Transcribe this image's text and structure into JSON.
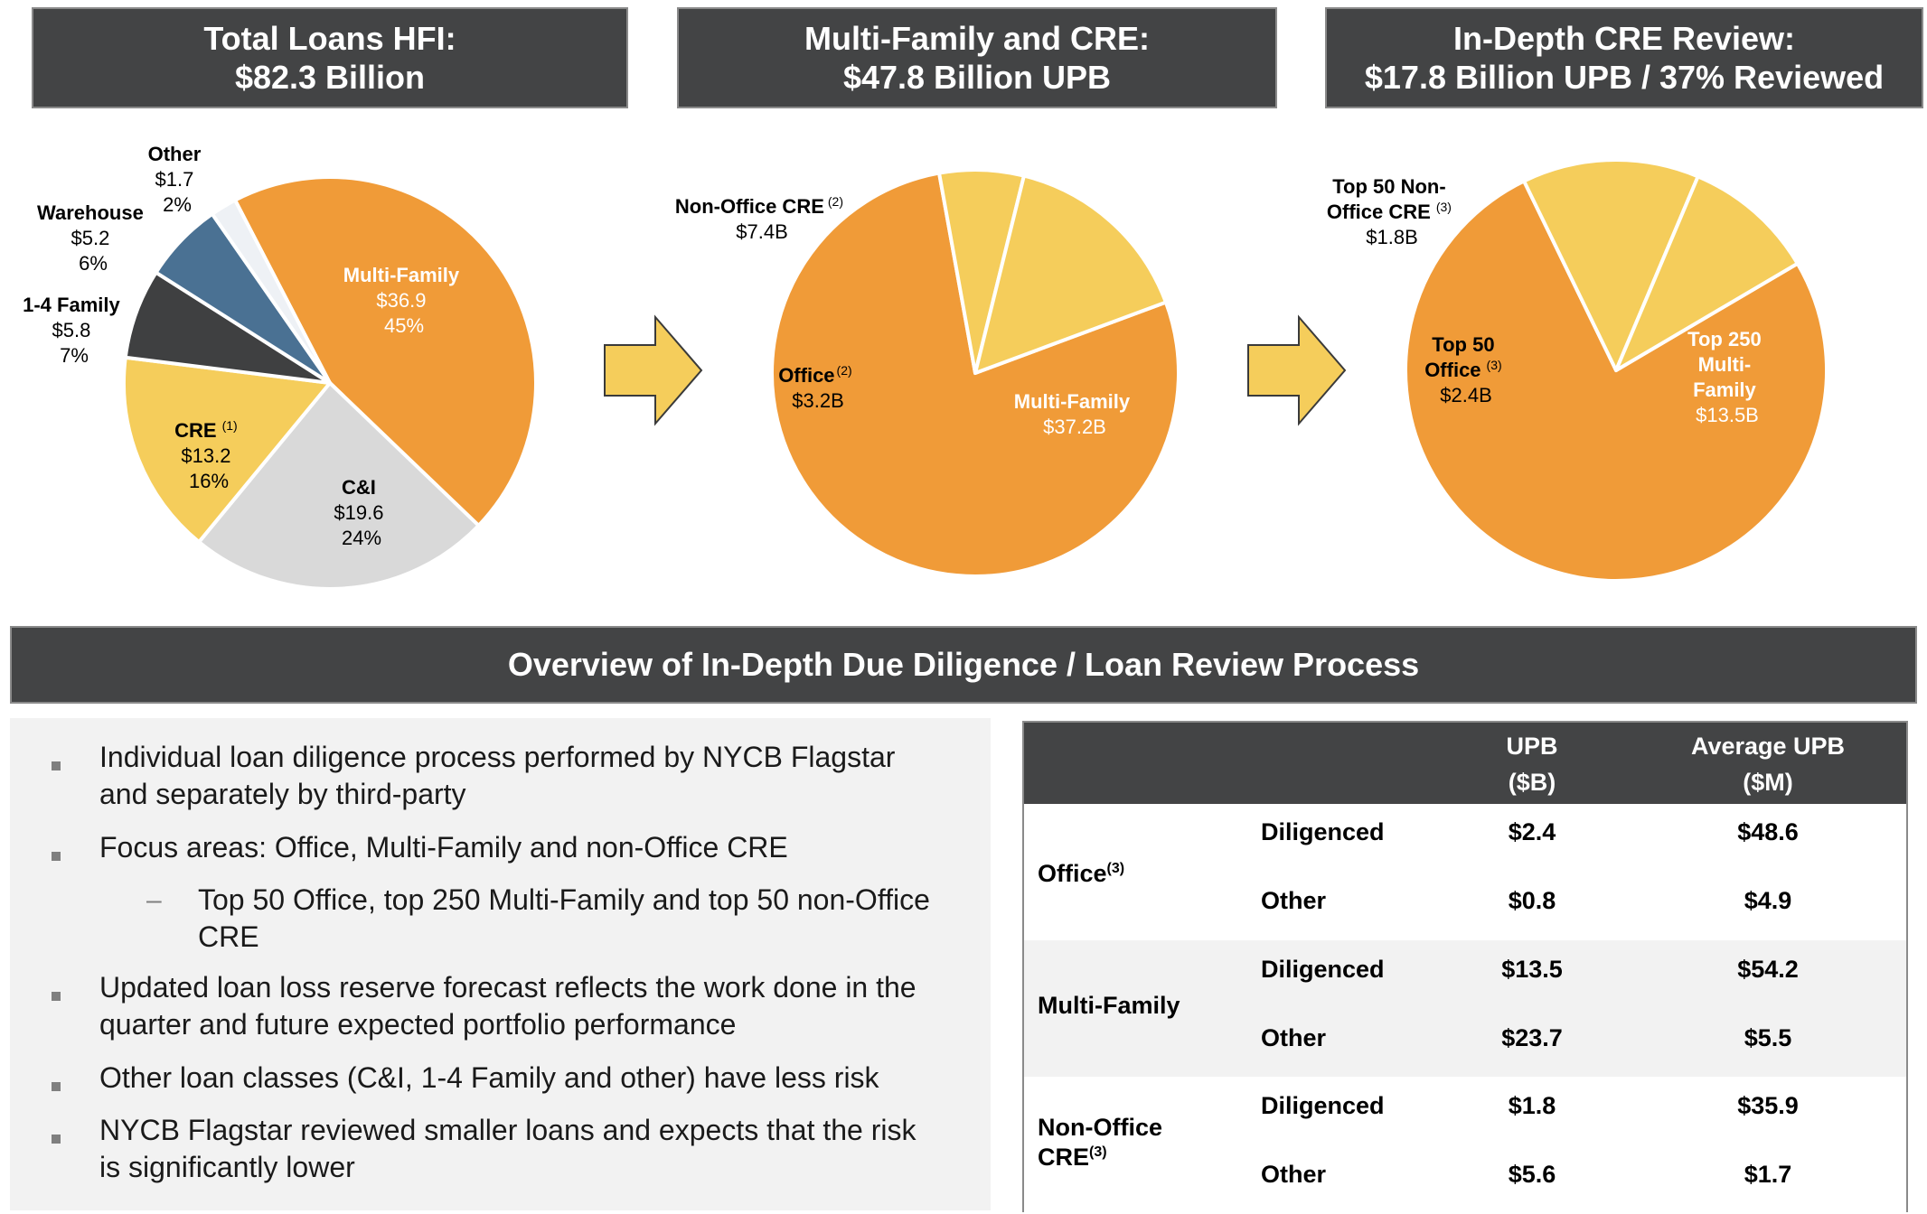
{
  "headers": {
    "panel1": {
      "line1": "Total Loans HFI:",
      "line2": "$82.3 Billion"
    },
    "panel2": {
      "line1": "Multi-Family and CRE:",
      "line2": "$47.8 Billion UPB"
    },
    "panel3": {
      "line1": "In-Depth CRE Review:",
      "line2": "$17.8 Billion UPB / 37% Reviewed"
    },
    "overview": "Overview of In-Depth Due Diligence / Loan Review Process"
  },
  "chart_data": [
    {
      "type": "pie",
      "units": "$B",
      "slices": [
        {
          "name": "Multi-Family",
          "value": 36.9,
          "value_label": "$36.9",
          "pct": "45%",
          "color": "#f09b38"
        },
        {
          "name": "C&I",
          "value": 19.6,
          "value_label": "$19.6",
          "pct": "24%",
          "color": "#d9d9d9"
        },
        {
          "name": "CRE",
          "sup": "(1)",
          "value": 13.2,
          "value_label": "$13.2",
          "pct": "16%",
          "color": "#f5cd5b"
        },
        {
          "name": "1-4 Family",
          "value": 5.8,
          "value_label": "$5.8",
          "pct": "7%",
          "color": "#3f4041"
        },
        {
          "name": "Warehouse",
          "value": 5.2,
          "value_label": "$5.2",
          "pct": "6%",
          "color": "#4a7193"
        },
        {
          "name": "Other",
          "value": 1.7,
          "value_label": "$1.7",
          "pct": "2%",
          "color": "#eef1f5"
        }
      ]
    },
    {
      "type": "pie",
      "units": "$B",
      "slices": [
        {
          "name": "Multi-Family",
          "value": 37.2,
          "value_label": "$37.2B",
          "color": "#f09b38"
        },
        {
          "name": "Office",
          "sup": "(2)",
          "value": 3.2,
          "value_label": "$3.2B",
          "color": "#f5cd5b"
        },
        {
          "name": "Non-Office CRE",
          "sup": "(2)",
          "value": 7.4,
          "value_label": "$7.4B",
          "color": "#f5cd5b"
        }
      ]
    },
    {
      "type": "pie",
      "units": "$B",
      "slices": [
        {
          "name": "Top 250 Multi-Family",
          "value": 13.5,
          "value_label": "$13.5B",
          "color": "#f09b38"
        },
        {
          "name": "Top 50 Office",
          "sup": "(3)",
          "value": 2.4,
          "value_label": "$2.4B",
          "color": "#f5cd5b"
        },
        {
          "name": "Top 50 Non-Office CRE",
          "sup": "(3)",
          "value": 1.8,
          "value_label": "$1.8B",
          "color": "#f5cd5b"
        }
      ]
    }
  ],
  "bullets": [
    {
      "level": 1,
      "lines": [
        "Individual loan diligence process performed by NYCB Flagstar",
        "and separately by third-party"
      ]
    },
    {
      "level": 1,
      "lines": [
        "Focus areas: Office, Multi-Family and non-Office CRE"
      ]
    },
    {
      "level": 2,
      "lines": [
        "Top 50 Office, top 250 Multi-Family and top 50 non-Office",
        "CRE"
      ]
    },
    {
      "level": 1,
      "lines": [
        "Updated loan loss reserve forecast reflects the work done in the",
        "quarter and future expected portfolio performance"
      ]
    },
    {
      "level": 1,
      "lines": [
        "Other loan classes (C&I, 1-4 Family and other) have less risk"
      ]
    },
    {
      "level": 1,
      "lines": [
        "NYCB Flagstar reviewed smaller loans and expects that the risk",
        "is significantly lower"
      ]
    }
  ],
  "table": {
    "col_upb": [
      "UPB",
      "($B)"
    ],
    "col_avg": [
      "Average UPB",
      "($M)"
    ],
    "groups": [
      {
        "name": "Office",
        "sup": "(3)",
        "rows": [
          {
            "label": "Diligenced",
            "upb": "$2.4",
            "avg": "$48.6"
          },
          {
            "label": "Other",
            "upb": "$0.8",
            "avg": "$4.9"
          }
        ]
      },
      {
        "name": "Multi-Family",
        "sup": "",
        "rows": [
          {
            "label": "Diligenced",
            "upb": "$13.5",
            "avg": "$54.2"
          },
          {
            "label": "Other",
            "upb": "$23.7",
            "avg": "$5.5"
          }
        ]
      },
      {
        "name": "Non-Office",
        "name2": "CRE",
        "sup": "(3)",
        "rows": [
          {
            "label": "Diligenced",
            "upb": "$1.8",
            "avg": "$35.9"
          },
          {
            "label": "Other",
            "upb": "$5.6",
            "avg": "$1.7"
          }
        ]
      }
    ]
  }
}
